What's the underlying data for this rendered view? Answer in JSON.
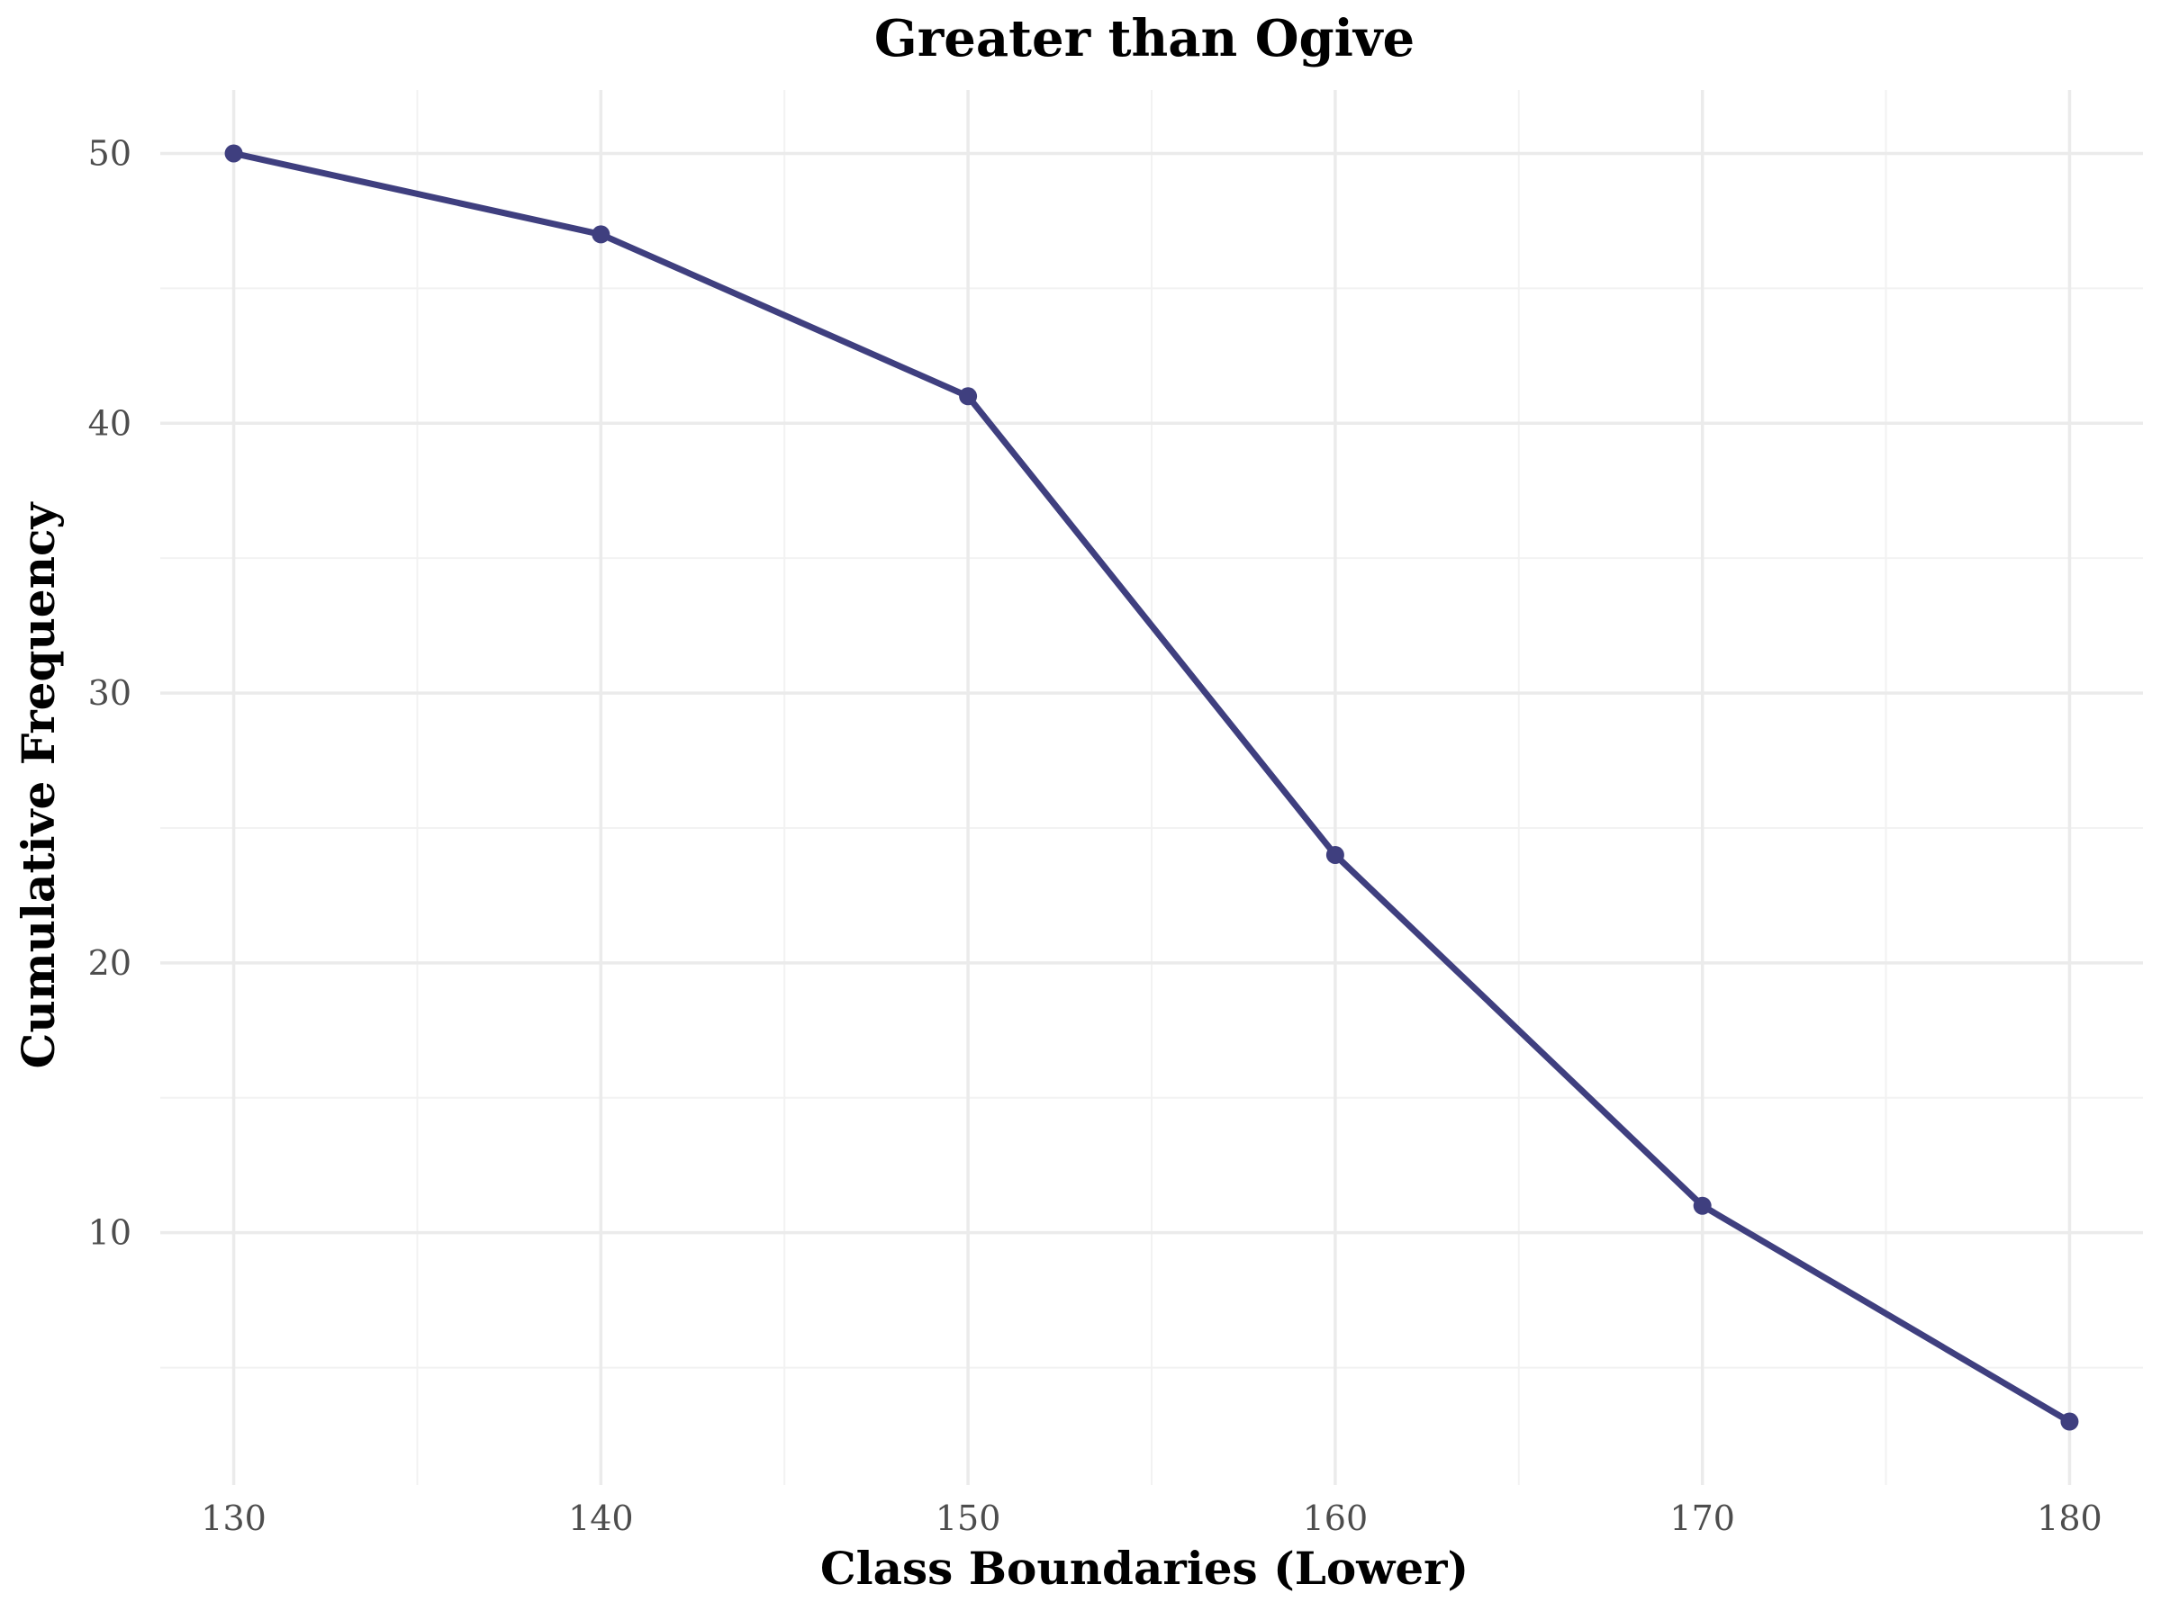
{
  "chart_data": {
    "type": "line",
    "title": "Greater than Ogive",
    "xlabel": "Class Boundaries (Lower)",
    "ylabel": "Cumulative Frequency",
    "x": [
      130,
      140,
      150,
      160,
      170,
      180
    ],
    "series": [
      {
        "values": [
          50,
          47,
          41,
          24,
          11,
          3
        ],
        "color": "#3f3f7f"
      }
    ],
    "xticks": [
      130,
      140,
      150,
      160,
      170,
      180
    ],
    "yticks": [
      10,
      20,
      30,
      40,
      50
    ],
    "xlim": [
      128,
      182
    ],
    "ylim": [
      0.65,
      52.35
    ],
    "grid": true,
    "legend": "none"
  }
}
